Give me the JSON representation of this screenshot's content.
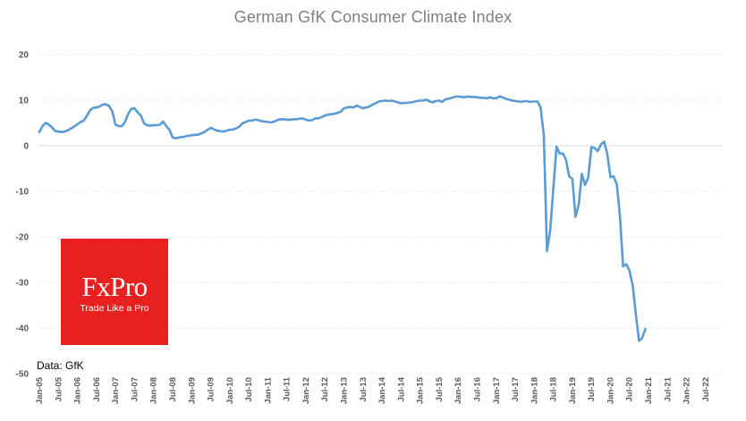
{
  "chart_data": {
    "type": "line",
    "title": "German GfK Consumer Climate Index",
    "xlabel": "",
    "ylabel": "",
    "ylim": [
      -50,
      20
    ],
    "yticks": [
      20,
      10,
      0,
      -10,
      -20,
      -30,
      -40,
      -50
    ],
    "xtick_labels": [
      "Jan-05",
      "Jul-05",
      "Jan-06",
      "Jul-06",
      "Jan-07",
      "Jul-07",
      "Jan-08",
      "Jul-08",
      "Jan-09",
      "Jul-09",
      "Jan-10",
      "Jul-10",
      "Jan-11",
      "Jul-11",
      "Jan-12",
      "Jul-12",
      "Jan-13",
      "Jul-13",
      "Jan-14",
      "Jul-14",
      "Jan-15",
      "Jul-15",
      "Jan-16",
      "Jul-16",
      "Jan-17",
      "Jul-17",
      "Jan-18",
      "Jul-18",
      "Jan-19",
      "Jul-19",
      "Jan-20",
      "Jul-20",
      "Jan-21",
      "Jul-21",
      "Jan-22",
      "Jul-22"
    ],
    "series": [
      {
        "name": "GfK Consumer Climate",
        "color": "#5b9bd5",
        "start": "Jan-05",
        "frequency": "monthly",
        "values": [
          3.0,
          4.3,
          5.0,
          4.6,
          4.0,
          3.2,
          3.1,
          3.0,
          3.1,
          3.4,
          3.8,
          4.2,
          4.7,
          5.2,
          5.5,
          6.6,
          7.8,
          8.3,
          8.4,
          8.6,
          9.0,
          9.1,
          8.7,
          7.5,
          4.6,
          4.3,
          4.3,
          5.2,
          7.0,
          8.1,
          8.2,
          7.3,
          6.6,
          4.9,
          4.5,
          4.4,
          4.5,
          4.5,
          4.6,
          5.3,
          4.3,
          3.5,
          1.8,
          1.6,
          1.8,
          1.9,
          2.0,
          2.2,
          2.3,
          2.4,
          2.4,
          2.7,
          3.0,
          3.5,
          3.9,
          3.6,
          3.3,
          3.2,
          3.1,
          3.3,
          3.5,
          3.5,
          3.8,
          4.2,
          4.9,
          5.2,
          5.5,
          5.5,
          5.7,
          5.6,
          5.4,
          5.3,
          5.2,
          5.1,
          5.3,
          5.6,
          5.8,
          5.8,
          5.7,
          5.7,
          5.8,
          5.8,
          5.9,
          6.0,
          5.7,
          5.5,
          5.6,
          6.0,
          6.0,
          6.3,
          6.6,
          6.8,
          6.9,
          7.0,
          7.2,
          7.5,
          8.2,
          8.4,
          8.5,
          8.4,
          8.8,
          8.5,
          8.2,
          8.4,
          8.6,
          9.0,
          9.3,
          9.7,
          9.8,
          9.9,
          9.8,
          9.9,
          9.7,
          9.5,
          9.3,
          9.4,
          9.4,
          9.5,
          9.6,
          9.8,
          9.9,
          9.9,
          10.1,
          9.7,
          9.5,
          9.8,
          9.9,
          9.6,
          10.2,
          10.3,
          10.5,
          10.7,
          10.8,
          10.7,
          10.6,
          10.8,
          10.7,
          10.7,
          10.6,
          10.5,
          10.5,
          10.4,
          10.6,
          10.4,
          10.4,
          10.8,
          10.6,
          10.3,
          10.1,
          9.9,
          9.8,
          9.7,
          9.6,
          9.8,
          9.7,
          9.6,
          9.7,
          9.7,
          8.3,
          2.2,
          -23.1,
          -18.6,
          -9.4,
          -0.2,
          -1.7,
          -1.7,
          -3.1,
          -6.7,
          -7.3,
          -15.6,
          -12.9,
          -6.2,
          -8.6,
          -7.0,
          -0.3,
          -0.5,
          -1.2,
          0.3,
          0.9,
          -1.8,
          -6.9,
          -6.7,
          -8.5,
          -15.5,
          -26.5,
          -26.0,
          -27.4,
          -30.6,
          -36.8,
          -42.8,
          -42.2,
          -40.2
        ]
      }
    ]
  },
  "logo": {
    "name": "FxPro",
    "tagline": "Trade Like a Pro",
    "color": "#e8201f"
  },
  "source_note": "Data: GfK"
}
